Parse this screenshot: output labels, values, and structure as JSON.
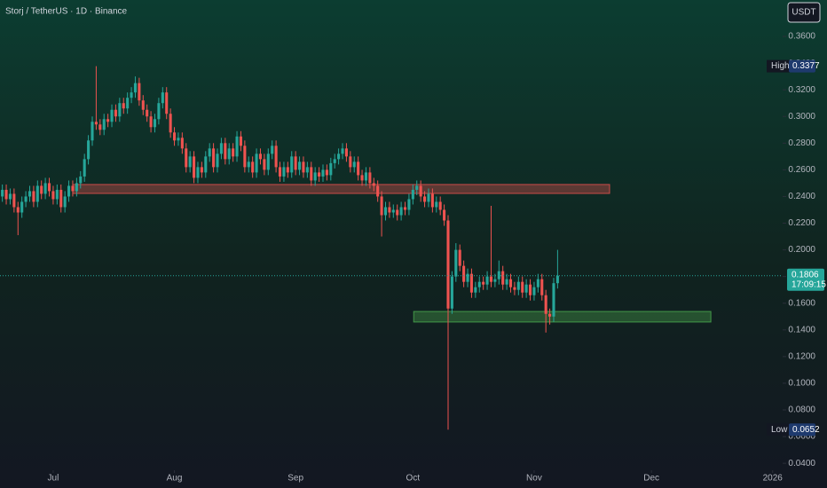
{
  "title": "Storj / TetherUS · 1D · Binance",
  "currency": "USDT",
  "chart_data": {
    "type": "candlestick",
    "up_color": "#26a69a",
    "down_color": "#ef5350",
    "xlim": [
      -13.6,
      186.1
    ],
    "ylim": [
      0.0361,
      0.3873
    ],
    "xticks": [
      {
        "value": 0,
        "label": "Jul"
      },
      {
        "value": 31,
        "label": "Aug"
      },
      {
        "value": 62,
        "label": "Sep"
      },
      {
        "value": 92,
        "label": "Oct"
      },
      {
        "value": 123,
        "label": "Nov"
      },
      {
        "value": 153,
        "label": "Dec"
      },
      {
        "value": 184,
        "label": "2026"
      }
    ],
    "yticks": [
      {
        "value": 0.36,
        "label": "0.3600"
      },
      {
        "value": 0.34,
        "label": "0.3400"
      },
      {
        "value": 0.32,
        "label": "0.3200"
      },
      {
        "value": 0.3,
        "label": "0.3000"
      },
      {
        "value": 0.28,
        "label": "0.2800"
      },
      {
        "value": 0.26,
        "label": "0.2600"
      },
      {
        "value": 0.24,
        "label": "0.2400"
      },
      {
        "value": 0.22,
        "label": "0.2200"
      },
      {
        "value": 0.2,
        "label": "0.2000"
      },
      {
        "value": 0.18,
        "label": "0.1800"
      },
      {
        "value": 0.16,
        "label": "0.1600"
      },
      {
        "value": 0.14,
        "label": "0.1400"
      },
      {
        "value": 0.12,
        "label": "0.1200"
      },
      {
        "value": 0.1,
        "label": "0.1000"
      },
      {
        "value": 0.08,
        "label": "0.0800"
      },
      {
        "value": 0.06,
        "label": "0.0600"
      },
      {
        "value": 0.04,
        "label": "0.0400"
      }
    ],
    "high": {
      "label": "High",
      "value": 0.3377
    },
    "low": {
      "label": "Low",
      "value": 0.0652
    },
    "last": {
      "value": 0.1806,
      "countdown": "17:09:15"
    },
    "zones": [
      {
        "x": [
          5,
          142.3
        ],
        "y": [
          0.2423,
          0.249
        ],
        "color": "#ef5350"
      },
      {
        "x": [
          92.2,
          168.2
        ],
        "y": [
          0.1459,
          0.1538
        ],
        "color": "#4caf50"
      }
    ],
    "x": [
      -13,
      -12,
      -11,
      -10,
      -9,
      -8,
      -7,
      -6,
      -5,
      -4,
      -3,
      -2,
      -1,
      0,
      1,
      2,
      3,
      4,
      5,
      6,
      7,
      8,
      9,
      10,
      11,
      12,
      13,
      14,
      15,
      16,
      17,
      18,
      19,
      20,
      21,
      22,
      23,
      24,
      25,
      26,
      27,
      28,
      29,
      30,
      31,
      32,
      33,
      34,
      35,
      36,
      37,
      38,
      39,
      40,
      41,
      42,
      43,
      44,
      45,
      46,
      47,
      48,
      49,
      50,
      51,
      52,
      53,
      54,
      55,
      56,
      57,
      58,
      59,
      60,
      61,
      62,
      63,
      64,
      65,
      66,
      67,
      68,
      69,
      70,
      71,
      72,
      73,
      74,
      75,
      76,
      77,
      78,
      79,
      80,
      81,
      82,
      83,
      84,
      85,
      86,
      87,
      88,
      89,
      90,
      91,
      92,
      93,
      94,
      95,
      96,
      97,
      98,
      99,
      100,
      101,
      102,
      103,
      104,
      105,
      106,
      107,
      108,
      109,
      110,
      111,
      112,
      113,
      114,
      115,
      116,
      117,
      118,
      119,
      120,
      121,
      122,
      123,
      124,
      125,
      126,
      127,
      128,
      129
    ],
    "ohlc": [
      [
        0.24,
        0.249,
        0.236,
        0.245
      ],
      [
        0.245,
        0.249,
        0.234,
        0.238
      ],
      [
        0.238,
        0.246,
        0.234,
        0.242
      ],
      [
        0.242,
        0.246,
        0.228,
        0.232
      ],
      [
        0.232,
        0.236,
        0.211,
        0.228
      ],
      [
        0.228,
        0.24,
        0.224,
        0.236
      ],
      [
        0.236,
        0.244,
        0.232,
        0.24
      ],
      [
        0.24,
        0.248,
        0.236,
        0.244
      ],
      [
        0.244,
        0.248,
        0.232,
        0.236
      ],
      [
        0.236,
        0.252,
        0.232,
        0.248
      ],
      [
        0.248,
        0.252,
        0.238,
        0.242
      ],
      [
        0.242,
        0.254,
        0.238,
        0.25
      ],
      [
        0.25,
        0.254,
        0.24,
        0.244
      ],
      [
        0.244,
        0.248,
        0.234,
        0.238
      ],
      [
        0.238,
        0.249,
        0.234,
        0.245
      ],
      [
        0.245,
        0.249,
        0.228,
        0.232
      ],
      [
        0.232,
        0.244,
        0.228,
        0.24
      ],
      [
        0.24,
        0.252,
        0.236,
        0.248
      ],
      [
        0.248,
        0.252,
        0.24,
        0.244
      ],
      [
        0.244,
        0.254,
        0.24,
        0.25
      ],
      [
        0.25,
        0.259,
        0.246,
        0.255
      ],
      [
        0.255,
        0.272,
        0.251,
        0.268
      ],
      [
        0.268,
        0.286,
        0.264,
        0.282
      ],
      [
        0.282,
        0.3,
        0.278,
        0.296
      ],
      [
        0.296,
        0.3377,
        0.29,
        0.294
      ],
      [
        0.294,
        0.298,
        0.286,
        0.29
      ],
      [
        0.29,
        0.302,
        0.286,
        0.298
      ],
      [
        0.298,
        0.302,
        0.292,
        0.296
      ],
      [
        0.296,
        0.309,
        0.292,
        0.305
      ],
      [
        0.305,
        0.309,
        0.296,
        0.3
      ],
      [
        0.3,
        0.314,
        0.296,
        0.31
      ],
      [
        0.31,
        0.314,
        0.302,
        0.306
      ],
      [
        0.306,
        0.318,
        0.302,
        0.314
      ],
      [
        0.314,
        0.322,
        0.31,
        0.318
      ],
      [
        0.318,
        0.33,
        0.314,
        0.325
      ],
      [
        0.325,
        0.329,
        0.308,
        0.312
      ],
      [
        0.312,
        0.316,
        0.301,
        0.305
      ],
      [
        0.305,
        0.309,
        0.296,
        0.3
      ],
      [
        0.3,
        0.304,
        0.288,
        0.292
      ],
      [
        0.292,
        0.302,
        0.288,
        0.298
      ],
      [
        0.298,
        0.314,
        0.294,
        0.31
      ],
      [
        0.31,
        0.322,
        0.306,
        0.318
      ],
      [
        0.318,
        0.322,
        0.298,
        0.302
      ],
      [
        0.302,
        0.306,
        0.284,
        0.288
      ],
      [
        0.288,
        0.292,
        0.278,
        0.282
      ],
      [
        0.282,
        0.288,
        0.278,
        0.284
      ],
      [
        0.284,
        0.288,
        0.272,
        0.276
      ],
      [
        0.276,
        0.28,
        0.258,
        0.262
      ],
      [
        0.262,
        0.274,
        0.258,
        0.27
      ],
      [
        0.27,
        0.274,
        0.25,
        0.254
      ],
      [
        0.254,
        0.266,
        0.25,
        0.262
      ],
      [
        0.262,
        0.266,
        0.254,
        0.258
      ],
      [
        0.258,
        0.274,
        0.254,
        0.27
      ],
      [
        0.27,
        0.28,
        0.266,
        0.276
      ],
      [
        0.276,
        0.28,
        0.258,
        0.262
      ],
      [
        0.262,
        0.276,
        0.258,
        0.272
      ],
      [
        0.272,
        0.284,
        0.268,
        0.28
      ],
      [
        0.28,
        0.284,
        0.264,
        0.268
      ],
      [
        0.268,
        0.28,
        0.264,
        0.276
      ],
      [
        0.276,
        0.28,
        0.266,
        0.27
      ],
      [
        0.27,
        0.289,
        0.266,
        0.285
      ],
      [
        0.285,
        0.289,
        0.274,
        0.278
      ],
      [
        0.278,
        0.282,
        0.258,
        0.262
      ],
      [
        0.262,
        0.27,
        0.258,
        0.266
      ],
      [
        0.266,
        0.27,
        0.254,
        0.258
      ],
      [
        0.258,
        0.276,
        0.254,
        0.272
      ],
      [
        0.272,
        0.276,
        0.264,
        0.268
      ],
      [
        0.268,
        0.272,
        0.256,
        0.26
      ],
      [
        0.26,
        0.276,
        0.256,
        0.272
      ],
      [
        0.272,
        0.282,
        0.268,
        0.278
      ],
      [
        0.278,
        0.282,
        0.258,
        0.262
      ],
      [
        0.262,
        0.266,
        0.251,
        0.255
      ],
      [
        0.255,
        0.266,
        0.251,
        0.262
      ],
      [
        0.262,
        0.266,
        0.254,
        0.258
      ],
      [
        0.258,
        0.274,
        0.254,
        0.27
      ],
      [
        0.27,
        0.274,
        0.256,
        0.26
      ],
      [
        0.26,
        0.27,
        0.256,
        0.266
      ],
      [
        0.266,
        0.27,
        0.254,
        0.258
      ],
      [
        0.258,
        0.266,
        0.254,
        0.262
      ],
      [
        0.262,
        0.266,
        0.248,
        0.252
      ],
      [
        0.252,
        0.262,
        0.248,
        0.258
      ],
      [
        0.258,
        0.262,
        0.251,
        0.255
      ],
      [
        0.255,
        0.264,
        0.251,
        0.26
      ],
      [
        0.26,
        0.264,
        0.252,
        0.256
      ],
      [
        0.256,
        0.269,
        0.252,
        0.265
      ],
      [
        0.265,
        0.272,
        0.261,
        0.268
      ],
      [
        0.268,
        0.276,
        0.264,
        0.272
      ],
      [
        0.272,
        0.28,
        0.268,
        0.276
      ],
      [
        0.276,
        0.28,
        0.266,
        0.27
      ],
      [
        0.27,
        0.274,
        0.258,
        0.262
      ],
      [
        0.262,
        0.27,
        0.258,
        0.266
      ],
      [
        0.266,
        0.27,
        0.252,
        0.256
      ],
      [
        0.256,
        0.26,
        0.248,
        0.252
      ],
      [
        0.252,
        0.262,
        0.248,
        0.258
      ],
      [
        0.258,
        0.262,
        0.246,
        0.25
      ],
      [
        0.25,
        0.254,
        0.244,
        0.248
      ],
      [
        0.248,
        0.252,
        0.236,
        0.24
      ],
      [
        0.24,
        0.244,
        0.21,
        0.226
      ],
      [
        0.226,
        0.236,
        0.222,
        0.232
      ],
      [
        0.232,
        0.236,
        0.224,
        0.228
      ],
      [
        0.228,
        0.234,
        0.224,
        0.23
      ],
      [
        0.23,
        0.234,
        0.222,
        0.226
      ],
      [
        0.226,
        0.236,
        0.222,
        0.232
      ],
      [
        0.232,
        0.236,
        0.226,
        0.23
      ],
      [
        0.23,
        0.242,
        0.226,
        0.238
      ],
      [
        0.238,
        0.249,
        0.234,
        0.245
      ],
      [
        0.245,
        0.252,
        0.241,
        0.248
      ],
      [
        0.248,
        0.252,
        0.236,
        0.24
      ],
      [
        0.24,
        0.244,
        0.232,
        0.236
      ],
      [
        0.236,
        0.246,
        0.232,
        0.242
      ],
      [
        0.242,
        0.246,
        0.228,
        0.232
      ],
      [
        0.232,
        0.24,
        0.228,
        0.236
      ],
      [
        0.236,
        0.24,
        0.226,
        0.23
      ],
      [
        0.23,
        0.234,
        0.218,
        0.222
      ],
      [
        0.222,
        0.226,
        0.0652,
        0.156
      ],
      [
        0.156,
        0.184,
        0.152,
        0.18
      ],
      [
        0.18,
        0.205,
        0.176,
        0.2
      ],
      [
        0.2,
        0.204,
        0.184,
        0.188
      ],
      [
        0.188,
        0.192,
        0.172,
        0.176
      ],
      [
        0.176,
        0.186,
        0.172,
        0.182
      ],
      [
        0.182,
        0.186,
        0.164,
        0.168
      ],
      [
        0.168,
        0.176,
        0.164,
        0.172
      ],
      [
        0.172,
        0.18,
        0.168,
        0.176
      ],
      [
        0.176,
        0.18,
        0.17,
        0.174
      ],
      [
        0.174,
        0.184,
        0.17,
        0.18
      ],
      [
        0.18,
        0.233,
        0.172,
        0.176
      ],
      [
        0.176,
        0.182,
        0.172,
        0.178
      ],
      [
        0.178,
        0.192,
        0.174,
        0.184
      ],
      [
        0.184,
        0.188,
        0.17,
        0.174
      ],
      [
        0.174,
        0.182,
        0.17,
        0.178
      ],
      [
        0.178,
        0.182,
        0.168,
        0.172
      ],
      [
        0.172,
        0.176,
        0.166,
        0.17
      ],
      [
        0.17,
        0.18,
        0.166,
        0.176
      ],
      [
        0.176,
        0.18,
        0.164,
        0.168
      ],
      [
        0.168,
        0.178,
        0.164,
        0.174
      ],
      [
        0.174,
        0.178,
        0.162,
        0.166
      ],
      [
        0.166,
        0.176,
        0.162,
        0.172
      ],
      [
        0.172,
        0.182,
        0.168,
        0.178
      ],
      [
        0.178,
        0.182,
        0.162,
        0.166
      ],
      [
        0.166,
        0.17,
        0.138,
        0.152
      ],
      [
        0.152,
        0.156,
        0.144,
        0.15
      ],
      [
        0.15,
        0.179,
        0.146,
        0.175
      ],
      [
        0.175,
        0.2,
        0.171,
        0.1806
      ]
    ]
  }
}
